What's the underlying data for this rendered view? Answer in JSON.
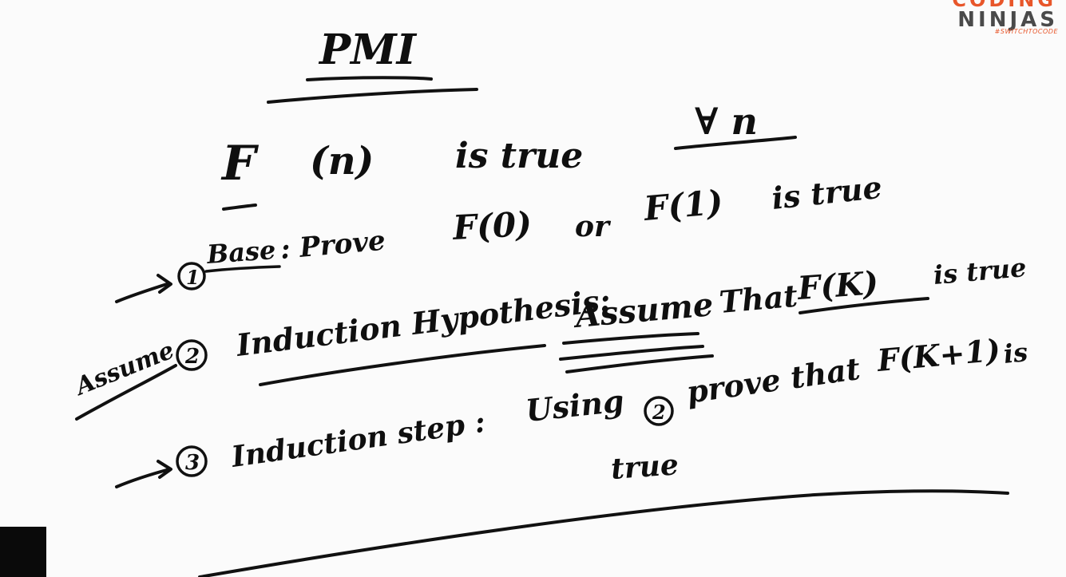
{
  "title": "PMI",
  "statement": {
    "function": "F",
    "arg": "(n)",
    "is_true": "is true",
    "for_all": "∀ n"
  },
  "step1": {
    "number": "1",
    "label": "Base",
    "text": ": Prove",
    "f0": "F(0)",
    "or": "or",
    "f1": "F(1)",
    "is_true": "is true"
  },
  "step2": {
    "margin_note": "Assume",
    "number": "2",
    "label": "Induction Hypothesis:",
    "assume": "Assume",
    "that": "That",
    "fk": "F(K)",
    "is_true": "is true"
  },
  "step3": {
    "number": "3",
    "label": "Induction step :",
    "using": "Using",
    "ref": "2",
    "prove_that": "prove that",
    "fk1": "F(K+1)",
    "is": "is",
    "true": "true"
  },
  "logo": {
    "top": "CODING",
    "word": "NINJAS",
    "tagline": "#SWITCHTOCODE",
    "accent_color": "#e8562a"
  }
}
